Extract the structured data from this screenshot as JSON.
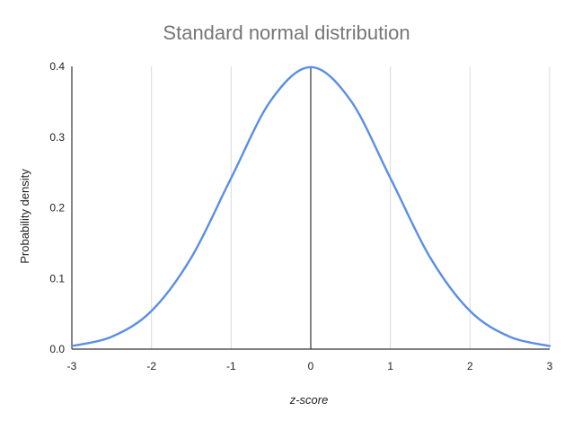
{
  "chart_data": {
    "type": "line",
    "title": "Standard normal distribution",
    "xlabel": "z-score",
    "ylabel": "Probability density",
    "xlim": [
      -3,
      3
    ],
    "ylim": [
      0,
      0.4
    ],
    "x_ticks": [
      "-3",
      "-2",
      "-1",
      "0",
      "1",
      "2",
      "3"
    ],
    "y_ticks": [
      "0.0",
      "0.1",
      "0.2",
      "0.3",
      "0.4"
    ],
    "grid": "vertical",
    "legend": "none",
    "colors": {
      "line": "#5b8ee6",
      "grid": "#d9d9d9",
      "axis": "#333333",
      "title": "#757575"
    },
    "series": [
      {
        "x": [
          -3,
          -2.5,
          -2,
          -1.5,
          -1,
          -0.5,
          0,
          0.5,
          1,
          1.5,
          2,
          2.5,
          3
        ],
        "y": [
          0.0044,
          0.0175,
          0.054,
          0.1295,
          0.242,
          0.352,
          0.399,
          0.352,
          0.242,
          0.1295,
          0.054,
          0.0175,
          0.0044
        ]
      }
    ]
  }
}
